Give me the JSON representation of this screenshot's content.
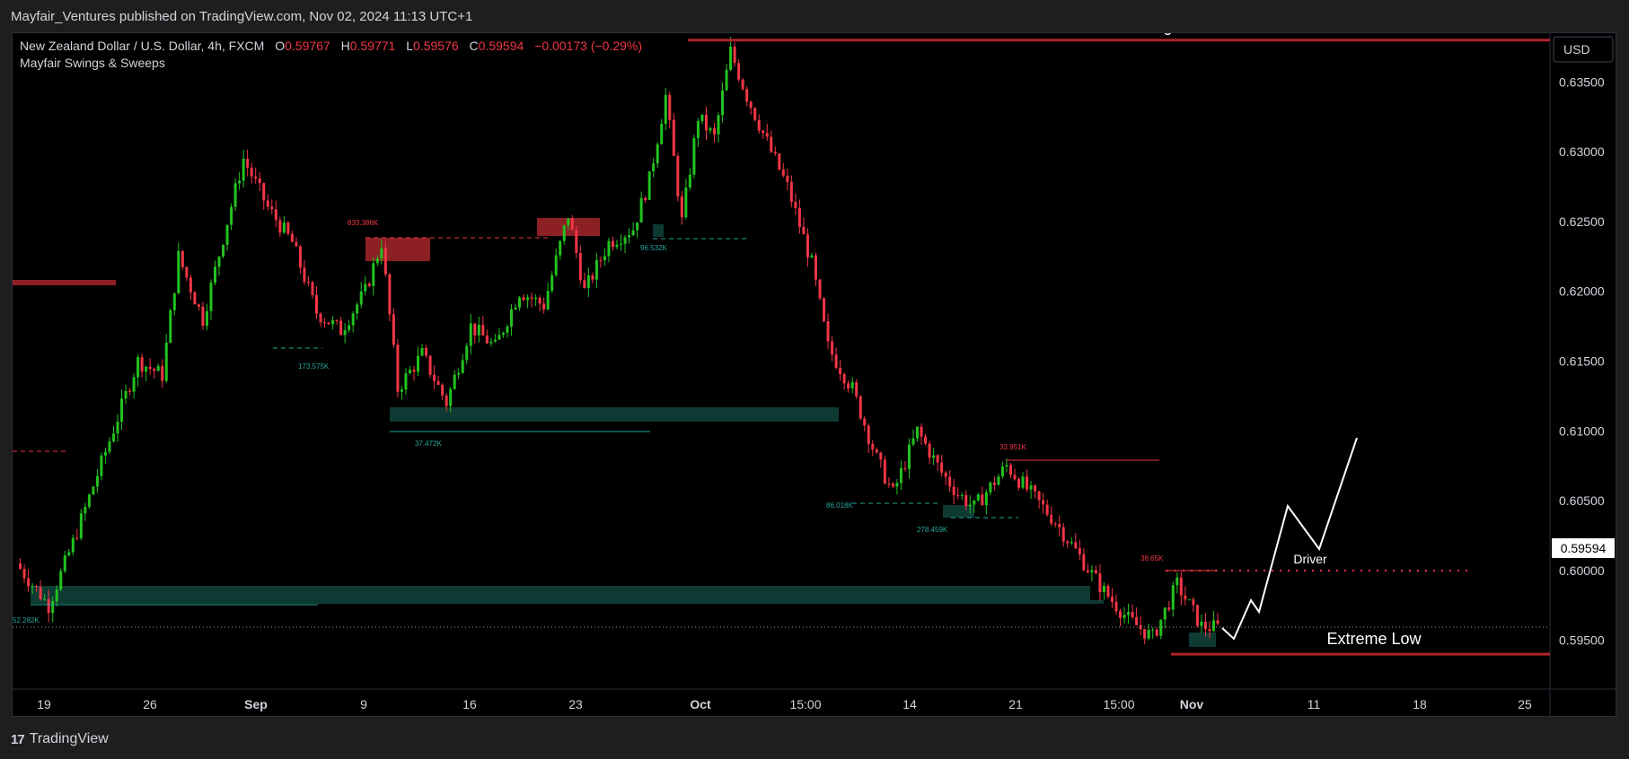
{
  "header": {
    "published": "Mayfair_Ventures published on TradingView.com, Nov 02, 2024 11:13 UTC+1"
  },
  "footer": {
    "brand": "TradingView"
  },
  "legend": {
    "symbol": "New Zealand Dollar / U.S. Dollar, 4h, FXCM",
    "o_label": "O",
    "o_value": "0.59767",
    "h_label": "H",
    "h_value": "0.59771",
    "l_label": "L",
    "l_value": "0.59576",
    "c_label": "C",
    "c_value": "0.59594",
    "change": "−0.00173 (−0.29%)",
    "indicator": "Mayfair Swings & Sweeps"
  },
  "currency_button": "USD",
  "current_price": "0.59594",
  "colors": {
    "up": "#22c21f",
    "down": "#f23645",
    "zone_green": "#0d3b33",
    "zone_red": "#8c2025",
    "level_red": "#b2232b",
    "bg": "#000000"
  },
  "chart_data": {
    "type": "candlestick",
    "ylim": [
      0.5915,
      0.6385
    ],
    "y_ticks": [
      "0.63500",
      "0.63000",
      "0.62500",
      "0.62000",
      "0.61500",
      "0.61000",
      "0.60500",
      "0.60000",
      "0.59500"
    ],
    "y_tick_values": [
      0.635,
      0.63,
      0.625,
      0.62,
      0.615,
      0.61,
      0.605,
      0.6,
      0.595
    ],
    "x_ticks": [
      "19",
      "26",
      "Sep",
      "9",
      "16",
      "23",
      "Oct",
      "15:00",
      "14",
      "21",
      "15:00",
      "Nov",
      "11",
      "18",
      "25"
    ],
    "x_tick_bold": [
      false,
      false,
      true,
      false,
      false,
      false,
      true,
      false,
      false,
      false,
      false,
      true,
      false,
      false,
      false
    ],
    "price_path": [
      [
        0,
        0.6005
      ],
      [
        8,
        0.5975
      ],
      [
        14,
        0.602
      ],
      [
        22,
        0.6085
      ],
      [
        30,
        0.615
      ],
      [
        36,
        0.614
      ],
      [
        40,
        0.6225
      ],
      [
        46,
        0.618
      ],
      [
        52,
        0.625
      ],
      [
        56,
        0.6295
      ],
      [
        62,
        0.626
      ],
      [
        68,
        0.6235
      ],
      [
        74,
        0.6185
      ],
      [
        80,
        0.6172
      ],
      [
        86,
        0.62
      ],
      [
        90,
        0.6235
      ],
      [
        94,
        0.613
      ],
      [
        100,
        0.6155
      ],
      [
        106,
        0.612
      ],
      [
        112,
        0.6175
      ],
      [
        118,
        0.616
      ],
      [
        124,
        0.62
      ],
      [
        130,
        0.619
      ],
      [
        136,
        0.6255
      ],
      [
        140,
        0.62
      ],
      [
        146,
        0.6235
      ],
      [
        152,
        0.6245
      ],
      [
        156,
        0.628
      ],
      [
        160,
        0.634
      ],
      [
        164,
        0.625
      ],
      [
        168,
        0.6325
      ],
      [
        172,
        0.631
      ],
      [
        176,
        0.6372
      ],
      [
        180,
        0.634
      ],
      [
        186,
        0.63
      ],
      [
        190,
        0.6275
      ],
      [
        196,
        0.622
      ],
      [
        200,
        0.616
      ],
      [
        206,
        0.613
      ],
      [
        212,
        0.608
      ],
      [
        216,
        0.6055
      ],
      [
        222,
        0.61
      ],
      [
        228,
        0.607
      ],
      [
        232,
        0.6055
      ],
      [
        236,
        0.6045
      ],
      [
        240,
        0.606
      ],
      [
        244,
        0.6075
      ],
      [
        250,
        0.6055
      ],
      [
        256,
        0.6035
      ],
      [
        262,
        0.601
      ],
      [
        268,
        0.5985
      ],
      [
        274,
        0.5965
      ],
      [
        280,
        0.5952
      ],
      [
        286,
        0.599
      ],
      [
        292,
        0.596
      ],
      [
        296,
        0.5959
      ]
    ],
    "annotations": [
      {
        "text": "Extreme High",
        "value": 0.638
      },
      {
        "text": "Extreme Low",
        "value": 0.594
      },
      {
        "text": "Driver",
        "value": 0.601
      }
    ],
    "volume_labels": [
      {
        "text": "833.386K",
        "price": 0.6265,
        "color": "red"
      },
      {
        "text": "173.575K",
        "price": 0.615,
        "color": "green"
      },
      {
        "text": "37.472K",
        "price": 0.6095,
        "color": "green"
      },
      {
        "text": "96.532K",
        "price": 0.624,
        "color": "green"
      },
      {
        "text": "86.018K",
        "price": 0.6045,
        "color": "green"
      },
      {
        "text": "278.459K",
        "price": 0.6035,
        "color": "green"
      },
      {
        "text": "33.951K",
        "price": 0.61,
        "color": "red"
      },
      {
        "text": "38.65K",
        "price": 0.601,
        "color": "red"
      },
      {
        "text": "52.282K",
        "price": 0.596,
        "color": "green"
      }
    ]
  }
}
